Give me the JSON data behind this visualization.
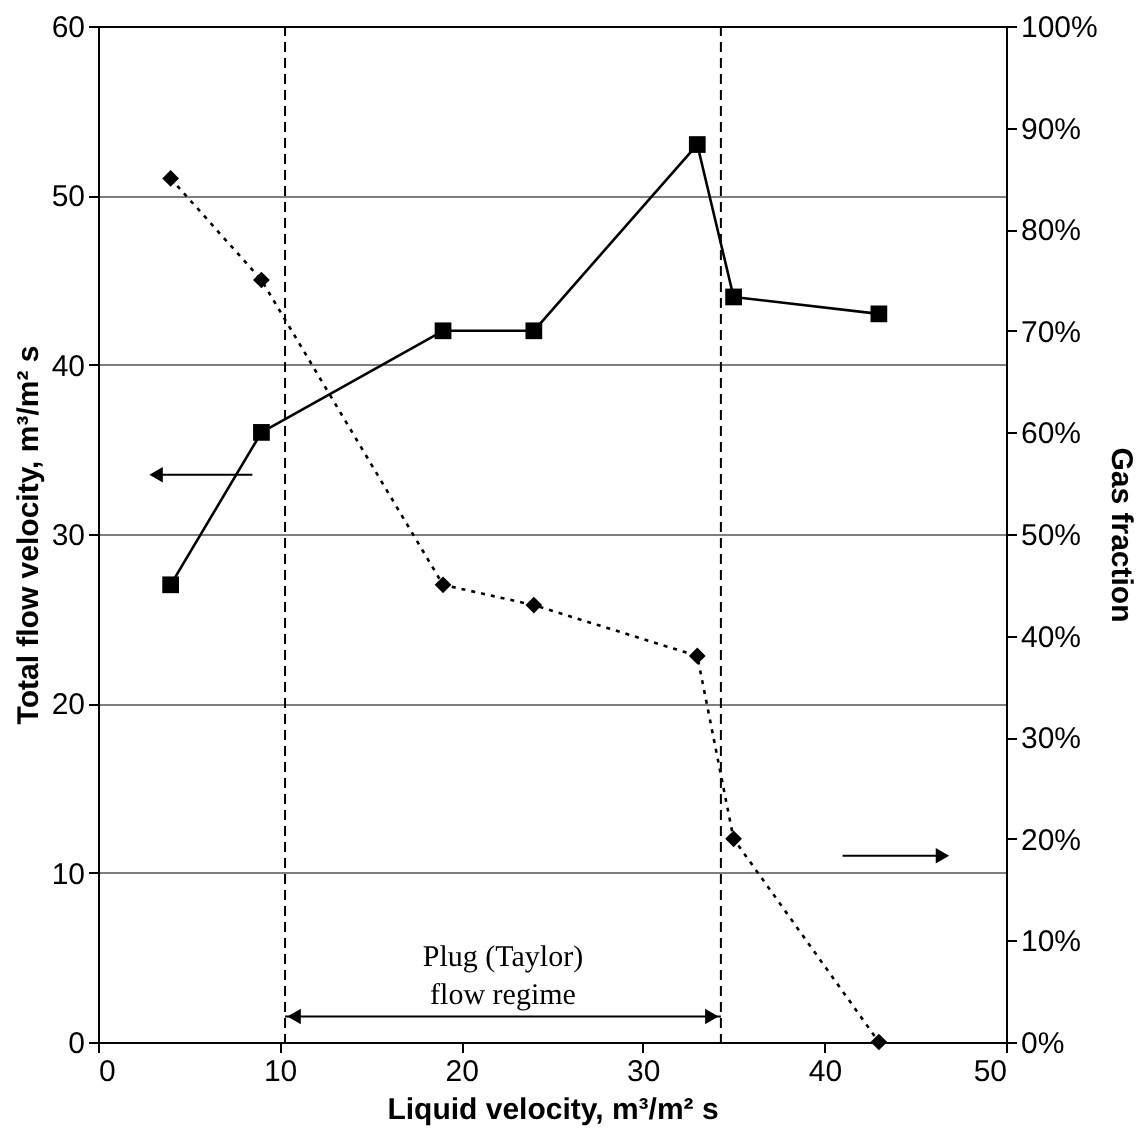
{
  "chart_data": {
    "type": "line",
    "xlabel": "Liquid velocity, m³/m² s",
    "ylabel": "Total flow velocity, m³/m² s",
    "y2label": "Gas fraction",
    "x": [
      4,
      9,
      19,
      24,
      33,
      35,
      43
    ],
    "series": [
      {
        "color": "#000000",
        "marker": "square",
        "line_style": "solid",
        "values": [
          27,
          36,
          42,
          42,
          53,
          44,
          43
        ]
      },
      {
        "color": "#000000",
        "marker": "diamond",
        "line_style": "dotted",
        "axis": "y2",
        "values": [
          85,
          75,
          45,
          43,
          38,
          20,
          0
        ]
      }
    ],
    "xlim": [
      0,
      50
    ],
    "xticks": [
      0,
      10,
      20,
      30,
      40,
      50
    ],
    "ylim": [
      0,
      60
    ],
    "yticks": [
      0,
      10,
      20,
      30,
      40,
      50,
      60
    ],
    "y2lim": [
      0,
      100
    ],
    "y2ticks": [
      {
        "value": 0,
        "label": "0%"
      },
      {
        "value": 10,
        "label": "10%"
      },
      {
        "value": 20,
        "label": "20%"
      },
      {
        "value": 30,
        "label": "30%"
      },
      {
        "value": 40,
        "label": "40%"
      },
      {
        "value": 50,
        "label": "50%"
      },
      {
        "value": 60,
        "label": "60%"
      },
      {
        "value": 70,
        "label": "70%"
      },
      {
        "value": 80,
        "label": "80%"
      },
      {
        "value": 90,
        "label": "90%"
      },
      {
        "value": 100,
        "label": "100%"
      }
    ],
    "ref_lines": [
      {
        "axis": "x",
        "value": 10.3,
        "line_style": "dashed",
        "color": "#000000"
      },
      {
        "axis": "x",
        "value": 34.3,
        "line_style": "dashed",
        "color": "#000000"
      }
    ],
    "annotations": [
      "Plug (Taylor)\nflow regime"
    ],
    "grid": "y"
  }
}
